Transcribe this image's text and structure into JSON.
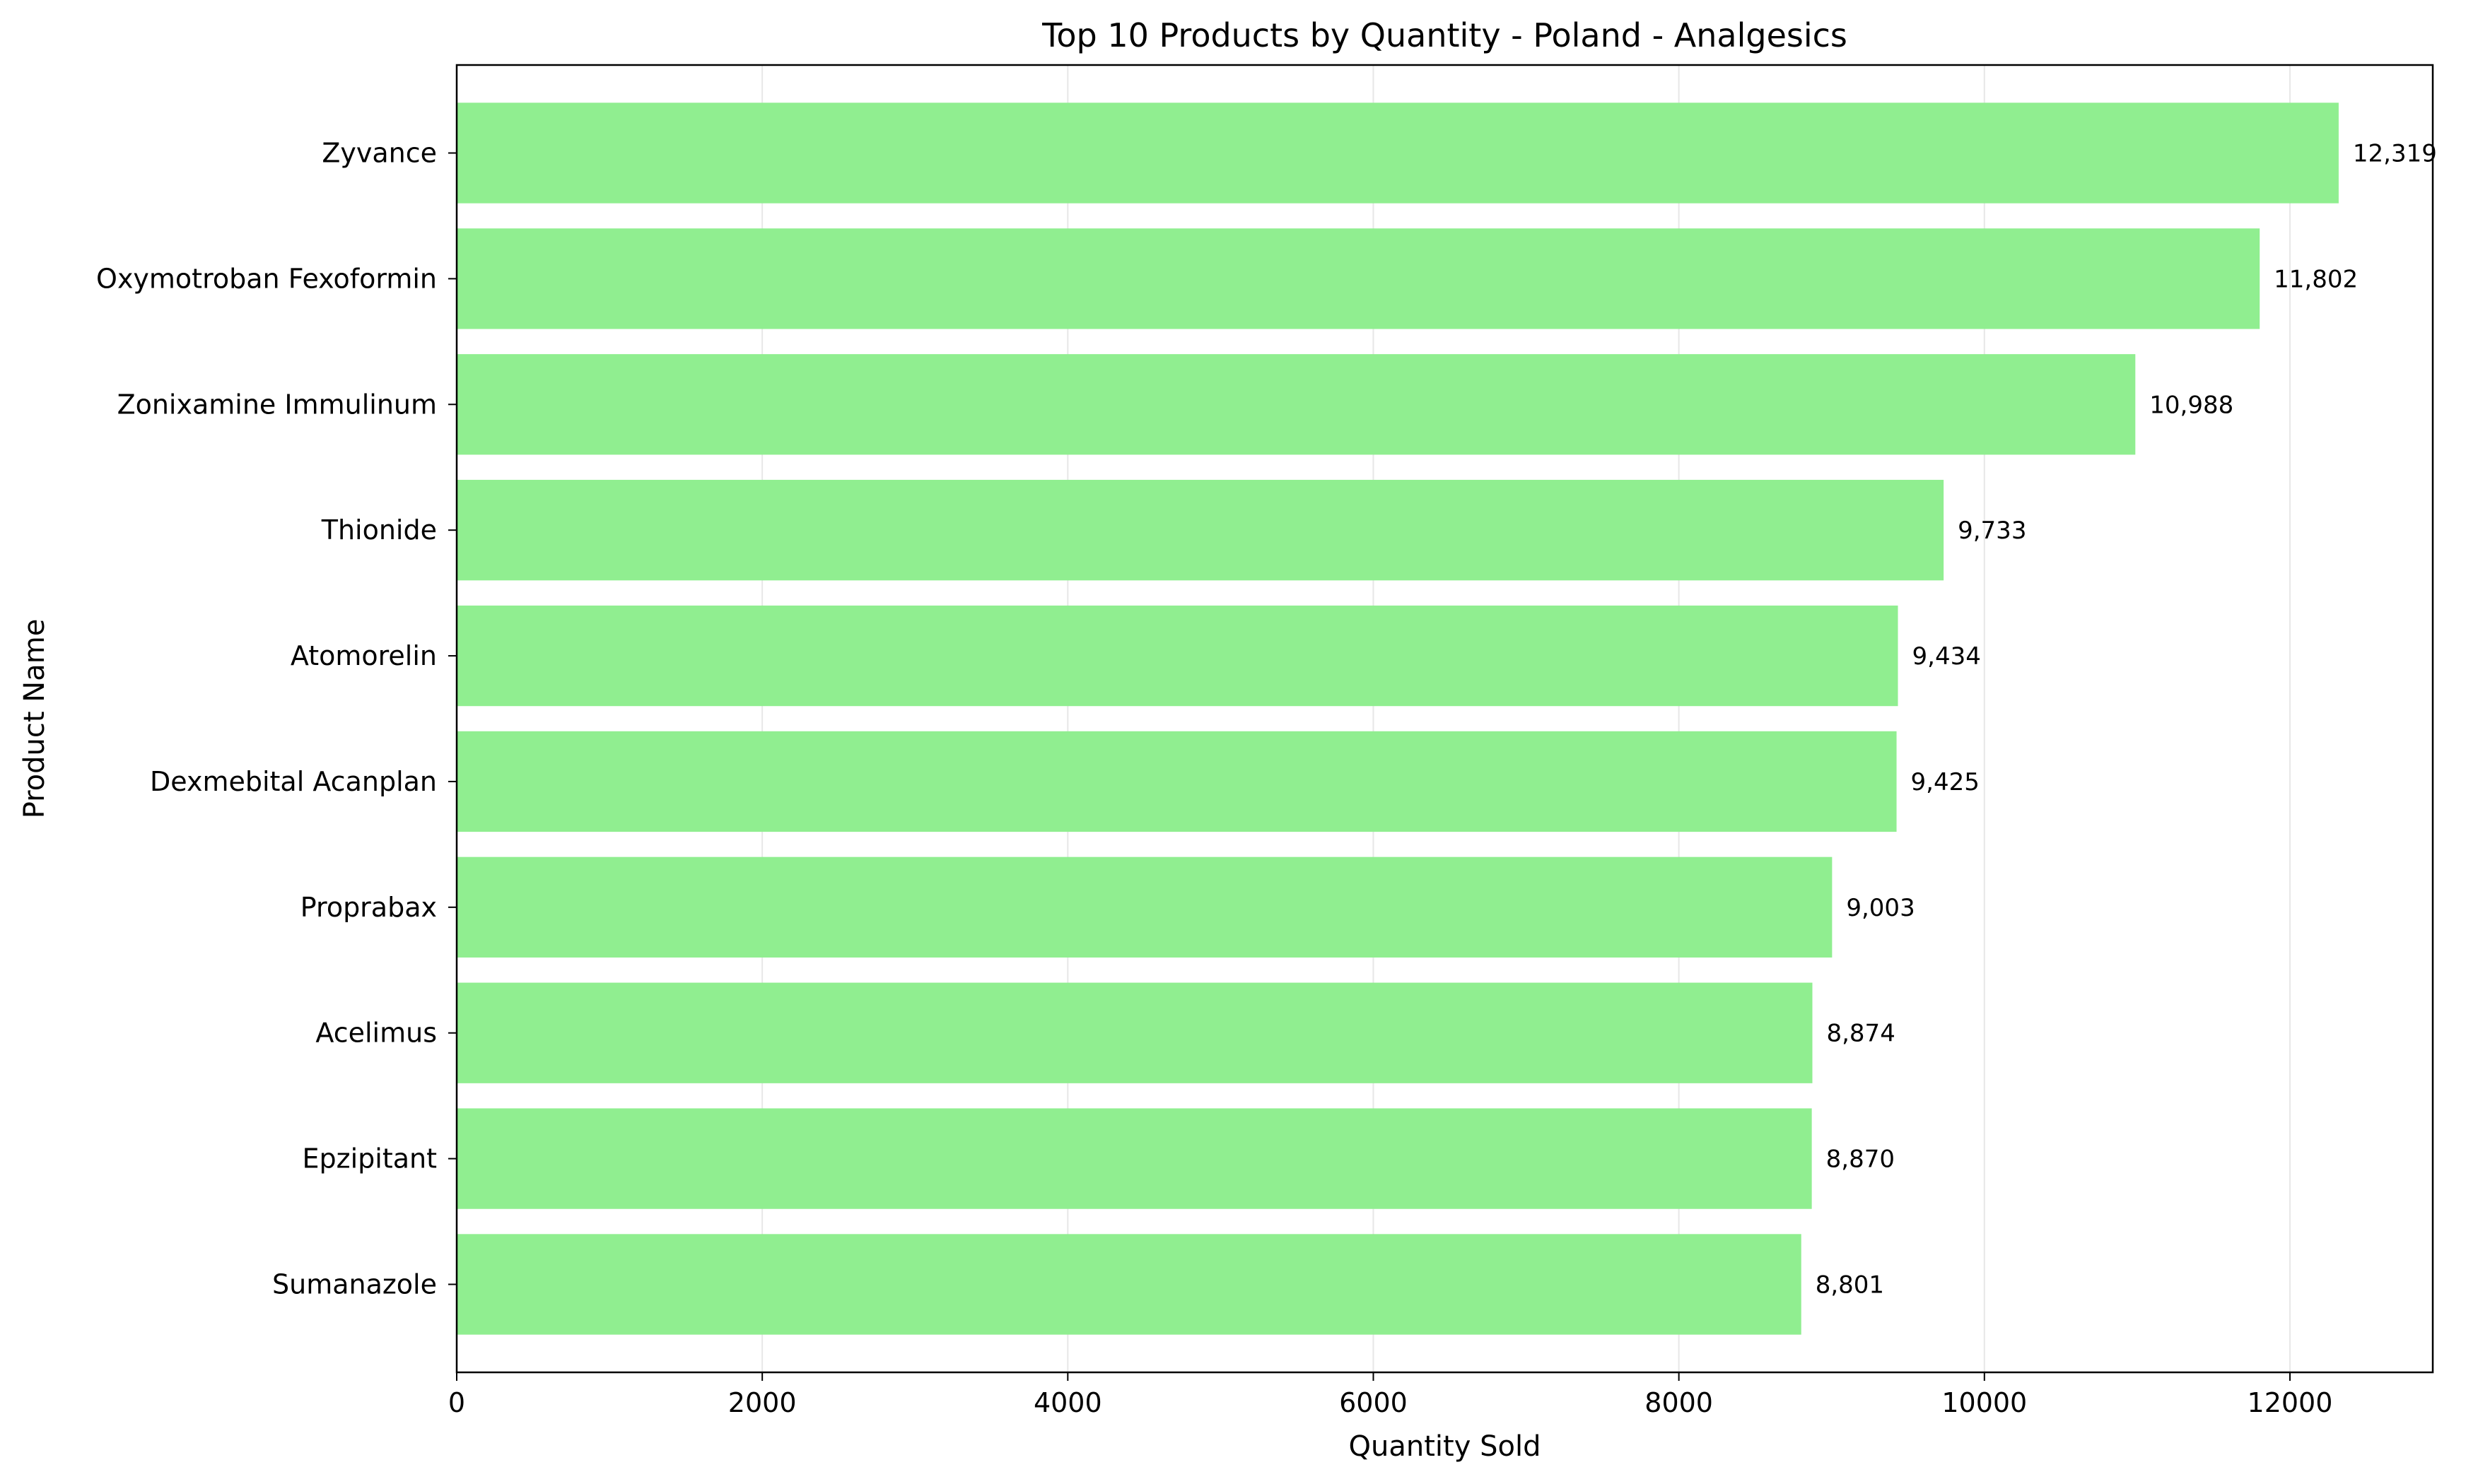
{
  "chart_data": {
    "type": "bar",
    "orientation": "horizontal",
    "title": "Top 10 Products by Quantity - Poland - Analgesics",
    "xlabel": "Quantity Sold",
    "ylabel": "Product Name",
    "xlim": [
      0,
      12935
    ],
    "xticks": [
      0,
      2000,
      4000,
      6000,
      8000,
      10000,
      12000
    ],
    "grid": "vertical",
    "categories": [
      "Zyvance",
      "Oxymotroban Fexoformin",
      "Zonixamine Immulinum",
      "Thionide",
      "Atomorelin",
      "Dexmebital Acanplan",
      "Proprabax",
      "Acelimus",
      "Epzipitant",
      "Sumanazole"
    ],
    "values": [
      12319,
      11802,
      10988,
      9733,
      9434,
      9425,
      9003,
      8874,
      8870,
      8801
    ],
    "value_labels": [
      "12,319",
      "11,802",
      "10,988",
      "9,733",
      "9,434",
      "9,425",
      "9,003",
      "8,874",
      "8,870",
      "8,801"
    ],
    "bar_color": "#90ee90"
  }
}
